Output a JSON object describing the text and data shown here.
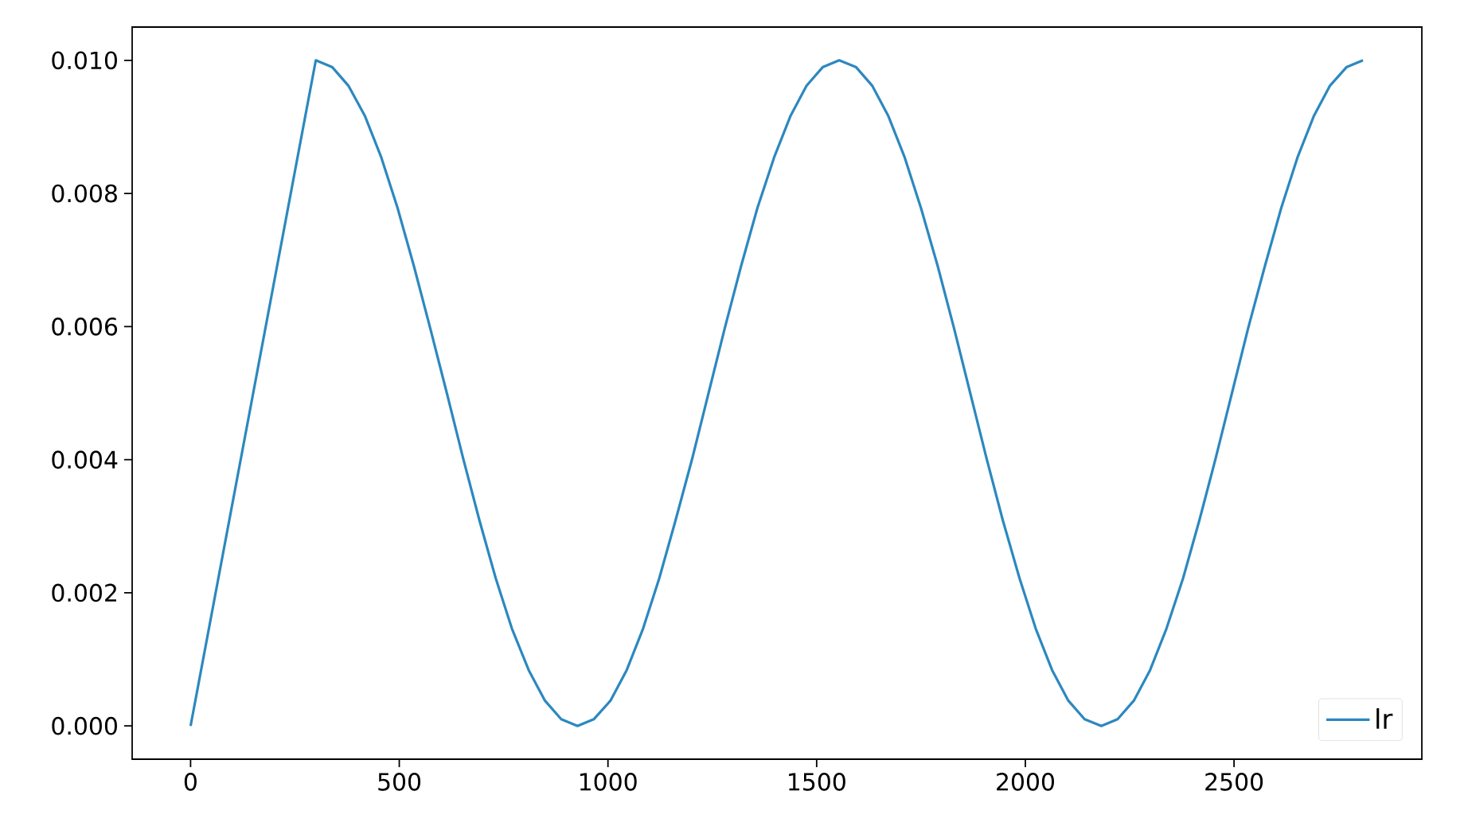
{
  "chart_data": {
    "type": "line",
    "x": [
      0,
      300,
      339,
      378,
      418,
      457,
      496,
      535,
      574,
      614,
      653,
      692,
      731,
      770,
      810,
      849,
      888,
      927,
      966,
      1006,
      1045,
      1084,
      1123,
      1162,
      1202,
      1241,
      1280,
      1319,
      1358,
      1398,
      1437,
      1476,
      1515,
      1554,
      1594,
      1633,
      1672,
      1711,
      1750,
      1790,
      1829,
      1868,
      1907,
      1946,
      1986,
      2025,
      2064,
      2103,
      2142,
      2182,
      2221,
      2260,
      2299,
      2338,
      2378,
      2417,
      2456,
      2495,
      2534,
      2574,
      2613,
      2652,
      2691,
      2730,
      2770,
      2809
    ],
    "series": [
      {
        "name": "lr",
        "color": "#2c88bf",
        "values": [
          0,
          0.01,
          0.0099,
          0.00962,
          0.00916,
          0.00854,
          0.00778,
          0.00691,
          0.00598,
          0.005,
          0.00402,
          0.00309,
          0.00222,
          0.00146,
          0.00084,
          0.00038,
          0.0001,
          0,
          0.0001,
          0.00038,
          0.00084,
          0.00146,
          0.00222,
          0.00309,
          0.00402,
          0.005,
          0.00598,
          0.00691,
          0.00778,
          0.00854,
          0.00916,
          0.00962,
          0.0099,
          0.01,
          0.0099,
          0.00962,
          0.00916,
          0.00854,
          0.00778,
          0.00691,
          0.00598,
          0.005,
          0.00402,
          0.00309,
          0.00222,
          0.00146,
          0.00084,
          0.00038,
          0.0001,
          0,
          0.0001,
          0.00038,
          0.00084,
          0.00146,
          0.00222,
          0.00309,
          0.00402,
          0.005,
          0.00598,
          0.00691,
          0.00778,
          0.00854,
          0.00916,
          0.00962,
          0.0099,
          0.01
        ]
      }
    ],
    "xlim": [
      -140,
      2950
    ],
    "ylim": [
      -0.0005,
      0.0105
    ],
    "xticks": [
      0,
      500,
      1000,
      1500,
      2000,
      2500
    ],
    "yticks": [
      {
        "value": 0,
        "label": "0.000"
      },
      {
        "value": 0.002,
        "label": "0.002"
      },
      {
        "value": 0.004,
        "label": "0.004"
      },
      {
        "value": 0.006,
        "label": "0.006"
      },
      {
        "value": 0.008,
        "label": "0.008"
      },
      {
        "value": 0.01,
        "label": "0.010"
      }
    ],
    "legend": "bottom right",
    "grid": false,
    "marker": "none",
    "line_style": "solid"
  }
}
